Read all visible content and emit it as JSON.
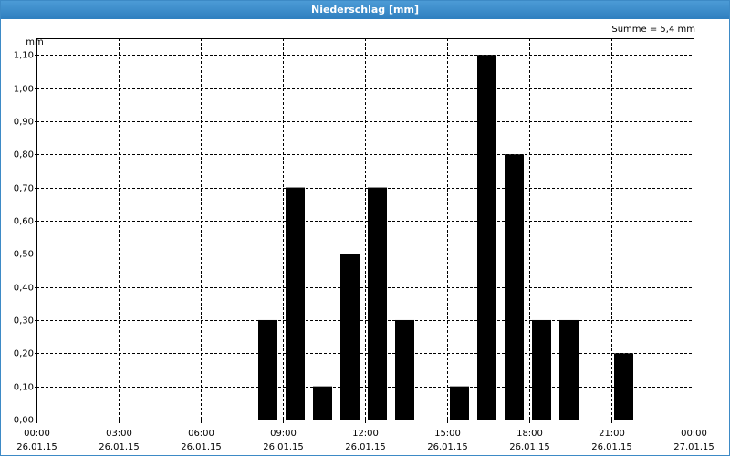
{
  "chart_data": {
    "type": "bar",
    "title": "Niederschlag [mm]",
    "y_label": "mm",
    "annotation": "Summe = 5,4 mm",
    "x": [
      0,
      1,
      2,
      3,
      4,
      5,
      6,
      7,
      8,
      9,
      10,
      11,
      12,
      13,
      14,
      15,
      16,
      17,
      18,
      19,
      20,
      21,
      22,
      23
    ],
    "values": [
      0,
      0,
      0,
      0,
      0,
      0,
      0,
      0,
      0.3,
      0.7,
      0.1,
      0.5,
      0.7,
      0.3,
      0,
      0.1,
      1.1,
      0.8,
      0.3,
      0.3,
      0,
      0.2,
      0,
      0
    ],
    "color": "#000000",
    "xlim": [
      0,
      24
    ],
    "xticks": [
      {
        "value": 0,
        "label": "00:00",
        "date": "26.01.15"
      },
      {
        "value": 3,
        "label": "03:00",
        "date": "26.01.15"
      },
      {
        "value": 6,
        "label": "06:00",
        "date": "26.01.15"
      },
      {
        "value": 9,
        "label": "09:00",
        "date": "26.01.15"
      },
      {
        "value": 12,
        "label": "12:00",
        "date": "26.01.15"
      },
      {
        "value": 15,
        "label": "15:00",
        "date": "26.01.15"
      },
      {
        "value": 18,
        "label": "18:00",
        "date": "26.01.15"
      },
      {
        "value": 21,
        "label": "21:00",
        "date": "26.01.15"
      },
      {
        "value": 24,
        "label": "00:00",
        "date": "27.01.15"
      }
    ],
    "ylim": [
      0,
      1.15
    ],
    "yticks": [
      {
        "value": 0,
        "label": "0,00"
      },
      {
        "value": 0.1,
        "label": "0,10"
      },
      {
        "value": 0.2,
        "label": "0,20"
      },
      {
        "value": 0.3,
        "label": "0,30"
      },
      {
        "value": 0.4,
        "label": "0,40"
      },
      {
        "value": 0.5,
        "label": "0,50"
      },
      {
        "value": 0.6,
        "label": "0,60"
      },
      {
        "value": 0.7,
        "label": "0,70"
      },
      {
        "value": 0.8,
        "label": "0,80"
      },
      {
        "value": 0.9,
        "label": "0,90"
      },
      {
        "value": 1.0,
        "label": "1,00"
      },
      {
        "value": 1.1,
        "label": "1,10"
      }
    ],
    "grid": true
  }
}
